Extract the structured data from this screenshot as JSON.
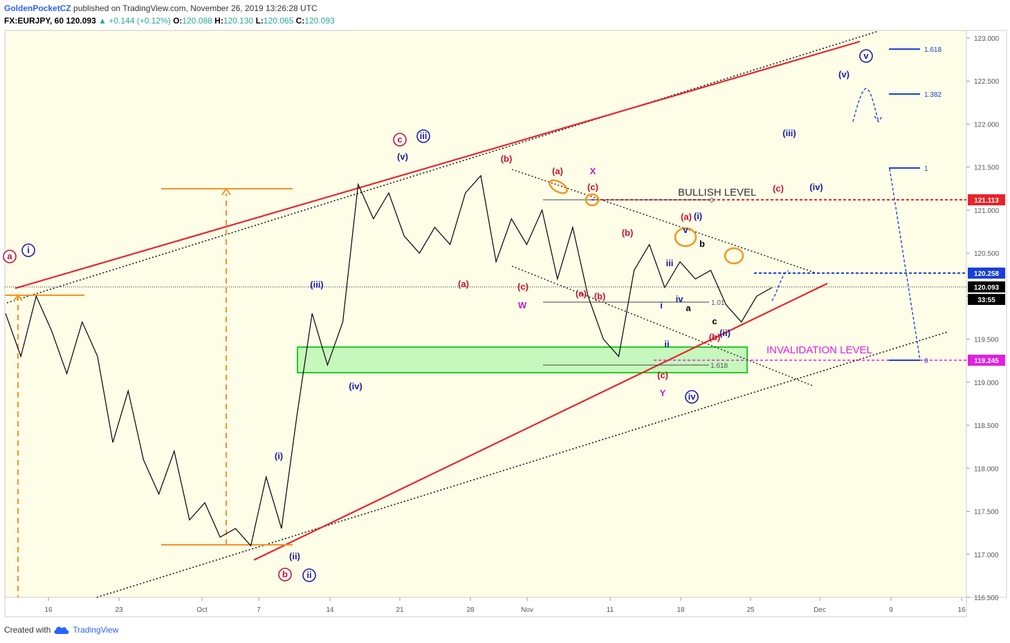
{
  "header": {
    "author": "GoldenPocketCZ",
    "published": "published on TradingView.com, November 26, 2019 13:26:28 UTC",
    "symbol": "FX:EURJPY, 60",
    "last": "120.093",
    "change": "▲ +0.144 (+0.12%)",
    "o_label": "O:",
    "o_value": "120.088",
    "h_label": "H:",
    "h_value": "120.130",
    "l_label": "L:",
    "l_value": "120.065",
    "c_label": "C:",
    "c_value": "120.093"
  },
  "footer": {
    "created_with": "Created with",
    "brand": "TradingView",
    "logo_icon": "tradingview-cloud-icon"
  },
  "colors": {
    "background": "#fdfde8",
    "trend": "#e8232a",
    "projection": "#f7931e",
    "wave_red": "#c8102e",
    "wave_blue": "#1a1aa6",
    "wave_magenta": "#c020c0",
    "target_blue": "#1a3fd6",
    "invalidation": "#e020e0",
    "zone_fill": "#b8f5b0",
    "zone_border": "#22cc22"
  },
  "chart_data": {
    "type": "line",
    "title": "",
    "xlabel": "",
    "ylabel": "",
    "ylim": [
      116.5,
      123.0
    ],
    "y_ticks": [
      "123.000",
      "122.500",
      "122.000",
      "121.500",
      "121.000",
      "120.500",
      "120.000",
      "119.500",
      "119.000",
      "118.500",
      "118.000",
      "117.500",
      "117.000",
      "116.500"
    ],
    "x_ticks": [
      "16",
      "23",
      "Oct",
      "7",
      "14",
      "21",
      "28",
      "Nov",
      "11",
      "18",
      "25",
      "Dec",
      "9",
      "16"
    ],
    "price_labels": [
      {
        "value": "121.113",
        "color": "#e8232a"
      },
      {
        "value": "120.258",
        "color": "#1a3fd6"
      },
      {
        "value": "120.093",
        "color": "#000000"
      },
      {
        "value": "33:55",
        "color": "#000000"
      },
      {
        "value": "119.245",
        "color": "#e020e0"
      }
    ],
    "annotations": {
      "bullish_level": "BULLISH LEVEL",
      "invalidation_level": "INVALIDATION LEVEL",
      "fib_0_top": "0",
      "fib_1_01": "1.01",
      "fib_1_618": "1.618",
      "target_1618": "1.618",
      "target_1382": "1.382",
      "target_1": "1",
      "target_0": "0"
    },
    "wave_labels": [
      {
        "t": "a",
        "c": "red",
        "circ": true
      },
      {
        "t": "i",
        "c": "blue",
        "circ": true
      },
      {
        "t": "c",
        "c": "red",
        "circ": true
      },
      {
        "t": "iii",
        "c": "blue",
        "circ": true
      },
      {
        "t": "(v)",
        "c": "blue"
      },
      {
        "t": "(iii)",
        "c": "blue"
      },
      {
        "t": "(iv)",
        "c": "blue"
      },
      {
        "t": "(i)",
        "c": "blue"
      },
      {
        "t": "(ii)",
        "c": "blue"
      },
      {
        "t": "b",
        "c": "red",
        "circ": true
      },
      {
        "t": "ii",
        "c": "blue",
        "circ": true
      },
      {
        "t": "(b)",
        "c": "red"
      },
      {
        "t": "(a)",
        "c": "red"
      },
      {
        "t": "(c)",
        "c": "red"
      },
      {
        "t": "W",
        "c": "magenta"
      },
      {
        "t": "(a)",
        "c": "red"
      },
      {
        "t": "X",
        "c": "magenta"
      },
      {
        "t": "(c)",
        "c": "red"
      },
      {
        "t": "(b)",
        "c": "red"
      },
      {
        "t": "(a)",
        "c": "red"
      },
      {
        "t": "(b)",
        "c": "red"
      },
      {
        "t": "(c)",
        "c": "red"
      },
      {
        "t": "Y",
        "c": "magenta"
      },
      {
        "t": "iv",
        "c": "blue",
        "circ": true
      },
      {
        "t": "(a)",
        "c": "red"
      },
      {
        "t": "(i)",
        "c": "blue"
      },
      {
        "t": "iii",
        "c": "blue"
      },
      {
        "t": "iv",
        "c": "blue"
      },
      {
        "t": "i",
        "c": "blue"
      },
      {
        "t": "ii",
        "c": "blue"
      },
      {
        "t": "v",
        "c": "blue"
      },
      {
        "t": "a",
        "c": "black"
      },
      {
        "t": "b",
        "c": "black"
      },
      {
        "t": "c",
        "c": "black"
      },
      {
        "t": "(b)",
        "c": "red"
      },
      {
        "t": "(ii)",
        "c": "blue"
      },
      {
        "t": "(c)",
        "c": "red"
      },
      {
        "t": "(iv)",
        "c": "blue"
      },
      {
        "t": "(iii)",
        "c": "blue"
      },
      {
        "t": "(v)",
        "c": "blue"
      },
      {
        "t": "v",
        "c": "blue",
        "circ": true
      }
    ],
    "series": [
      {
        "values": [
          119.8,
          119.3,
          120.0,
          119.6,
          119.1,
          119.7,
          119.3,
          118.3,
          118.9,
          118.1,
          117.7,
          118.2,
          117.4,
          117.6,
          117.2,
          117.3,
          117.1,
          117.9,
          117.3,
          118.6,
          119.8,
          119.2,
          119.7,
          121.3,
          120.9,
          121.2,
          120.7,
          120.5,
          120.8,
          120.6,
          121.2,
          121.4,
          120.4,
          120.9,
          120.6,
          121.0,
          120.2,
          120.8,
          120.0,
          119.5,
          119.3,
          120.3,
          120.6,
          120.1,
          120.4,
          120.2,
          120.3,
          119.9,
          119.7,
          120.0,
          120.1
        ]
      }
    ]
  }
}
